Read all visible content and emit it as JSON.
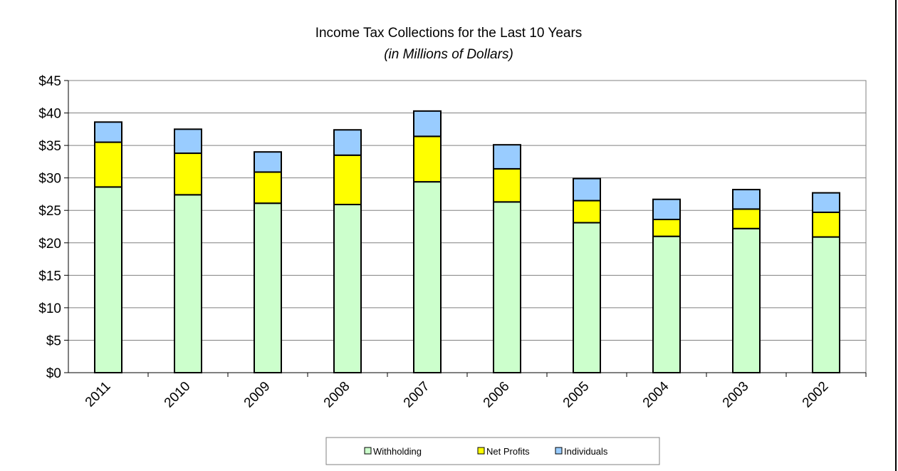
{
  "chart_data": {
    "type": "bar",
    "stacked": true,
    "title": "Income Tax Collections for the Last 10 Years",
    "subtitle": "(in Millions of Dollars)",
    "categories": [
      "2011",
      "2010",
      "2009",
      "2008",
      "2007",
      "2006",
      "2005",
      "2004",
      "2003",
      "2002"
    ],
    "series": [
      {
        "name": "Withholding",
        "color": "#ccffcc",
        "values": [
          28.6,
          27.4,
          26.1,
          25.9,
          29.4,
          26.3,
          23.1,
          21.0,
          22.2,
          20.9
        ]
      },
      {
        "name": "Net Profits",
        "color": "#ffff00",
        "values": [
          6.9,
          6.4,
          4.8,
          7.6,
          7.0,
          5.1,
          3.4,
          2.6,
          3.0,
          3.8
        ]
      },
      {
        "name": "Individuals",
        "color": "#99ccff",
        "values": [
          3.1,
          3.7,
          3.1,
          3.9,
          3.9,
          3.7,
          3.4,
          3.1,
          3.0,
          3.0
        ]
      }
    ],
    "ylim": [
      0,
      45
    ],
    "yticks": [
      "$0",
      "$5",
      "$10",
      "$15",
      "$20",
      "$25",
      "$30",
      "$35",
      "$40",
      "$45"
    ],
    "grid": true,
    "legend_position": "bottom"
  }
}
